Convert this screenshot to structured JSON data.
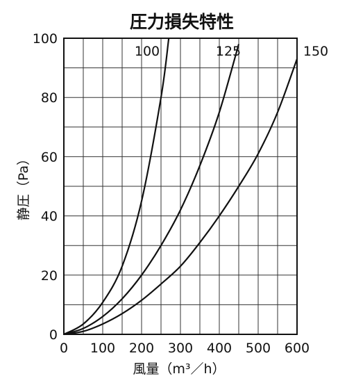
{
  "chart_data": {
    "type": "line",
    "title": "圧力損失特性",
    "xlabel": "風量（m³／h）",
    "ylabel": "静圧（Pa）",
    "xlim": [
      0,
      600
    ],
    "ylim": [
      0,
      100
    ],
    "x_ticks": [
      "0",
      "100",
      "200",
      "300",
      "400",
      "500",
      "600"
    ],
    "y_ticks": [
      "0",
      "20",
      "40",
      "60",
      "80",
      "100"
    ],
    "grid": true,
    "series": [
      {
        "name": "100",
        "x": [
          0,
          50,
          100,
          150,
          200,
          250,
          270
        ],
        "y": [
          0,
          3.5,
          10.8,
          23,
          45,
          80,
          100
        ]
      },
      {
        "name": "125",
        "x": [
          0,
          50,
          100,
          150,
          200,
          250,
          300,
          350,
          400,
          450
        ],
        "y": [
          0,
          2,
          6,
          12,
          20,
          30,
          42,
          57,
          75,
          98
        ]
      },
      {
        "name": "150",
        "x": [
          0,
          50,
          100,
          150,
          200,
          250,
          300,
          350,
          400,
          450,
          500,
          550,
          600
        ],
        "y": [
          0,
          1,
          3.5,
          7,
          11.5,
          17,
          23,
          31,
          40,
          50,
          61,
          75,
          93
        ]
      }
    ]
  }
}
